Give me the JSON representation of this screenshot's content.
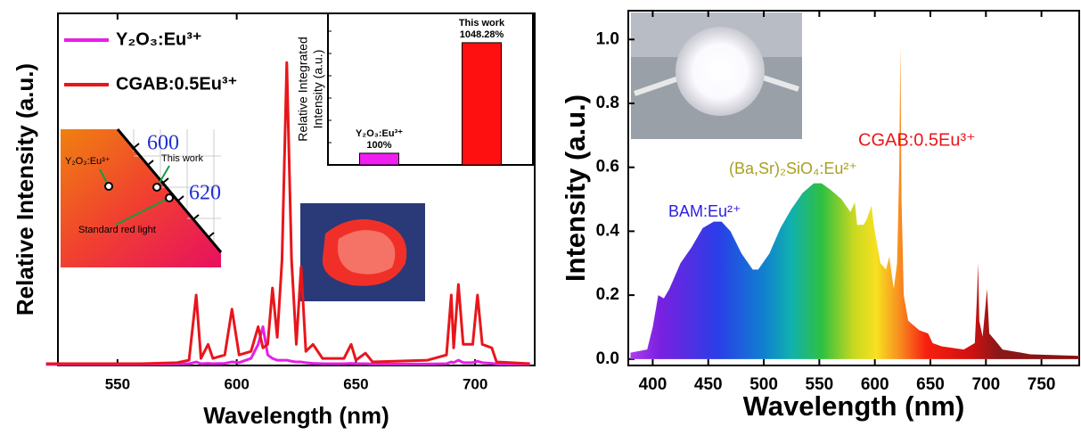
{
  "chart_data": [
    {
      "type": "line",
      "xlabel": "Wavelength (nm)",
      "ylabel": "Relative Intensity (a.u.)",
      "xlim": [
        525,
        725
      ],
      "xticks": [
        550,
        600,
        650,
        700
      ],
      "ylim": [
        0,
        1
      ],
      "legend": "upper left",
      "x": [
        520,
        560,
        575,
        580,
        583,
        585,
        588,
        590,
        595,
        598,
        601,
        606,
        609,
        611,
        613,
        615,
        617,
        619,
        621,
        623,
        625,
        627,
        629,
        632,
        636,
        645,
        648,
        650,
        654,
        657,
        680,
        688,
        690,
        691,
        693,
        695,
        699,
        701,
        703,
        707,
        709,
        723
      ],
      "series": [
        {
          "name": "Y₂O₃:Eu³⁺",
          "color": "#e81ee8",
          "values": [
            0.003,
            0.003,
            0.004,
            0.005,
            0.01,
            0.005,
            0.006,
            0.005,
            0.006,
            0.01,
            0.008,
            0.02,
            0.06,
            0.11,
            0.03,
            0.02,
            0.015,
            0.015,
            0.015,
            0.012,
            0.01,
            0.01,
            0.008,
            0.006,
            0.005,
            0.005,
            0.006,
            0.005,
            0.005,
            0.004,
            0.004,
            0.005,
            0.01,
            0.008,
            0.015,
            0.008,
            0.008,
            0.012,
            0.008,
            0.006,
            0.004,
            0.003
          ]
        },
        {
          "name": "CGAB:0.5Eu³⁺",
          "color": "#e8161b",
          "values": [
            0.005,
            0.005,
            0.008,
            0.015,
            0.2,
            0.02,
            0.06,
            0.02,
            0.03,
            0.16,
            0.03,
            0.04,
            0.11,
            0.05,
            0.06,
            0.22,
            0.08,
            0.3,
            0.86,
            0.3,
            0.06,
            0.28,
            0.04,
            0.06,
            0.02,
            0.02,
            0.06,
            0.015,
            0.035,
            0.01,
            0.015,
            0.03,
            0.2,
            0.05,
            0.23,
            0.06,
            0.06,
            0.2,
            0.06,
            0.05,
            0.01,
            0.005
          ]
        }
      ]
    },
    {
      "type": "bar",
      "ylabel": [
        "Relative Integrated",
        "Intensity (a.u.)"
      ],
      "categories": [
        "Y₂O₃:Eu³⁺",
        "This work"
      ],
      "values": [
        100,
        1048.28
      ],
      "value_labels": [
        "100%",
        "1048.28%"
      ],
      "colors": [
        "#f01ef0",
        "#ff1010"
      ],
      "ylim": [
        0,
        1300
      ]
    },
    {
      "type": "area",
      "xlabel": "Wavelength (nm)",
      "ylabel": "Intensity (a.u.)",
      "xlim": [
        378,
        784
      ],
      "xticks": [
        400,
        450,
        500,
        550,
        600,
        650,
        700,
        750
      ],
      "ylim": [
        -0.02,
        1.09
      ],
      "yticks": [
        {
          "value": 0,
          "label": "0.0"
        },
        {
          "value": 0.2,
          "label": "0.2"
        },
        {
          "value": 0.4,
          "label": "0.4"
        },
        {
          "value": 0.6,
          "label": "0.6"
        },
        {
          "value": 0.8,
          "label": "0.8"
        },
        {
          "value": 1,
          "label": "1.0"
        }
      ],
      "x": [
        380,
        395,
        400,
        405,
        410,
        415,
        425,
        435,
        445,
        455,
        462,
        470,
        480,
        490,
        495,
        505,
        515,
        525,
        535,
        545,
        552,
        560,
        570,
        578,
        582,
        584,
        590,
        593,
        597,
        599,
        605,
        610,
        613,
        617,
        620,
        622,
        623,
        624,
        626,
        630,
        640,
        648,
        652,
        660,
        680,
        690,
        692,
        693,
        694,
        697,
        700,
        701,
        703,
        708,
        715,
        740,
        784
      ],
      "values": [
        0.02,
        0.03,
        0.1,
        0.2,
        0.19,
        0.22,
        0.3,
        0.35,
        0.41,
        0.43,
        0.43,
        0.4,
        0.33,
        0.28,
        0.28,
        0.33,
        0.41,
        0.47,
        0.52,
        0.55,
        0.55,
        0.53,
        0.5,
        0.46,
        0.49,
        0.42,
        0.42,
        0.44,
        0.48,
        0.42,
        0.3,
        0.28,
        0.32,
        0.22,
        0.3,
        0.6,
        0.98,
        0.5,
        0.2,
        0.12,
        0.09,
        0.08,
        0.05,
        0.04,
        0.03,
        0.05,
        0.2,
        0.3,
        0.12,
        0.07,
        0.18,
        0.22,
        0.08,
        0.06,
        0.03,
        0.015,
        0.01
      ],
      "annotations": [
        {
          "text": "BAM:Eu²⁺",
          "color": "#2a1ee0"
        },
        {
          "text": "(Ba,Sr)₂SiO₄:Eu²⁺",
          "color": "#a8a020"
        },
        {
          "text": "CGAB:0.5Eu³⁺",
          "color": "#e8161b"
        }
      ]
    }
  ],
  "cie_inset": {
    "labels": [
      "600",
      "620"
    ],
    "points": [
      "Y₂O₃:Eu³⁺",
      "This work",
      "Standard red light"
    ]
  }
}
